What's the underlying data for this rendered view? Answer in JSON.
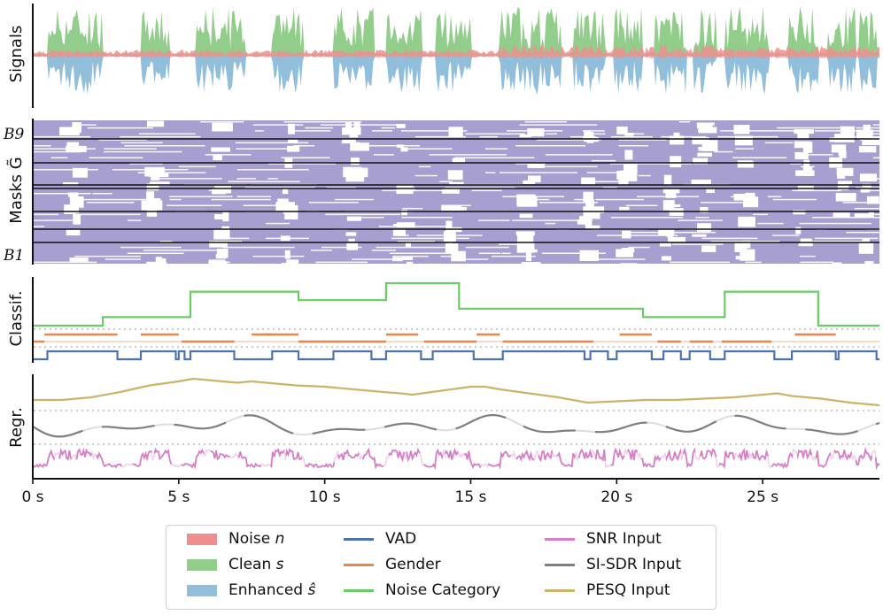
{
  "colors": {
    "noise": "#ee8e8e",
    "clean": "#93cd8c",
    "enhanced": "#91bfdb",
    "mask": "#a69fd0",
    "vad": "#4c72b0",
    "gender": "#e8864d",
    "noise_category": "#6acc64",
    "snr": "#d67fc6",
    "sisdr": "#7f7f7f",
    "pesq": "#cbb46a"
  },
  "chart_data": [
    {
      "type": "area",
      "ylabel": "Signals",
      "series": [
        {
          "name": "Noise n",
          "kind": "noise"
        },
        {
          "name": "Clean s",
          "kind": "clean"
        },
        {
          "name": "Enhanced ŝ",
          "kind": "enhanced"
        }
      ],
      "speech_segments_s": [
        [
          0.5,
          2.4
        ],
        [
          3.7,
          4.7
        ],
        [
          5.6,
          7.3
        ],
        [
          8.2,
          9.3
        ],
        [
          10.3,
          11.7
        ],
        [
          12.1,
          13.3
        ],
        [
          13.8,
          15.0
        ],
        [
          16.0,
          18.1
        ],
        [
          18.5,
          19.6
        ],
        [
          19.9,
          20.9
        ],
        [
          21.3,
          22.4
        ],
        [
          22.6,
          23.4
        ],
        [
          23.7,
          25.2
        ],
        [
          25.9,
          26.9
        ],
        [
          27.2,
          28.2
        ],
        [
          28.3,
          28.9
        ]
      ]
    },
    {
      "type": "heatmap",
      "ylabel": "Masks G̃",
      "band_top_label": "B9",
      "band_bottom_label": "B1",
      "speech_segments_s": [
        [
          0.5,
          2.4
        ],
        [
          3.7,
          4.7
        ],
        [
          5.6,
          7.3
        ],
        [
          8.2,
          9.3
        ],
        [
          10.3,
          11.7
        ],
        [
          12.1,
          13.3
        ],
        [
          13.8,
          15.0
        ],
        [
          16.0,
          18.1
        ],
        [
          18.5,
          19.6
        ],
        [
          19.9,
          20.9
        ],
        [
          21.3,
          22.4
        ],
        [
          22.6,
          23.4
        ],
        [
          23.7,
          25.2
        ],
        [
          25.9,
          26.9
        ],
        [
          27.2,
          28.2
        ],
        [
          28.3,
          28.9
        ]
      ]
    },
    {
      "type": "line",
      "ylabel": "Classif.",
      "noise_category_steps": [
        [
          0,
          0
        ],
        [
          2.4,
          1
        ],
        [
          5.4,
          4
        ],
        [
          9.1,
          3
        ],
        [
          12.1,
          5
        ],
        [
          14.6,
          2
        ],
        [
          20.9,
          1
        ],
        [
          23.7,
          4
        ],
        [
          26.9,
          0
        ],
        [
          29.0,
          0
        ]
      ],
      "vad_segments_s": [
        [
          0.5,
          2.9
        ],
        [
          3.7,
          4.9
        ],
        [
          5.0,
          5.2
        ],
        [
          5.4,
          6.9
        ],
        [
          8.2,
          9.1
        ],
        [
          10.3,
          11.6
        ],
        [
          12.1,
          13.3
        ],
        [
          13.7,
          15.1
        ],
        [
          16.1,
          18.9
        ],
        [
          19.1,
          19.7
        ],
        [
          20.0,
          21.2
        ],
        [
          21.6,
          22.2
        ],
        [
          22.5,
          23.2
        ],
        [
          23.7,
          25.4
        ],
        [
          26.0,
          27.5
        ],
        [
          27.6,
          28.9
        ]
      ],
      "gender_segments": [
        [
          0,
          0.4,
          "low"
        ],
        [
          0.4,
          2.9,
          "high"
        ],
        [
          3.7,
          5.0,
          "high"
        ],
        [
          5.1,
          6.9,
          "low"
        ],
        [
          7.5,
          8.2,
          "high"
        ],
        [
          7.9,
          9.1,
          "high"
        ],
        [
          9.1,
          12.1,
          "low"
        ],
        [
          12.1,
          13.2,
          "high"
        ],
        [
          13.4,
          15.2,
          "low"
        ],
        [
          15.2,
          16.0,
          "high"
        ],
        [
          16.1,
          19.2,
          "low"
        ],
        [
          20.1,
          21.2,
          "high"
        ],
        [
          21.4,
          22.2,
          "low"
        ],
        [
          22.5,
          23.3,
          "low"
        ],
        [
          23.6,
          25.3,
          "low"
        ],
        [
          26.1,
          27.5,
          "high"
        ]
      ]
    },
    {
      "type": "line",
      "ylabel": "Regr.",
      "series": [
        {
          "name": "SNR Input",
          "kind": "snr"
        },
        {
          "name": "SI-SDR Input",
          "kind": "sisdr"
        },
        {
          "name": "PESQ Input",
          "kind": "pesq"
        }
      ],
      "pesq_curve": [
        [
          0,
          0.2
        ],
        [
          1,
          0.2
        ],
        [
          2,
          0.3
        ],
        [
          3,
          0.5
        ],
        [
          4,
          0.75
        ],
        [
          5,
          0.9
        ],
        [
          5.5,
          1.0
        ],
        [
          6,
          0.95
        ],
        [
          7,
          0.85
        ],
        [
          7.5,
          0.9
        ],
        [
          8,
          0.85
        ],
        [
          9,
          0.75
        ],
        [
          10,
          0.7
        ],
        [
          11,
          0.6
        ],
        [
          12,
          0.5
        ],
        [
          12.6,
          0.45
        ],
        [
          13,
          0.4
        ],
        [
          14,
          0.55
        ],
        [
          15,
          0.7
        ],
        [
          15.5,
          0.7
        ],
        [
          16,
          0.6
        ],
        [
          17,
          0.45
        ],
        [
          18,
          0.3
        ],
        [
          19,
          0.1
        ],
        [
          20,
          0.15
        ],
        [
          21,
          0.2
        ],
        [
          22,
          0.2
        ],
        [
          23,
          0.25
        ],
        [
          24,
          0.3
        ],
        [
          25,
          0.4
        ],
        [
          25.5,
          0.45
        ],
        [
          26,
          0.35
        ],
        [
          27,
          0.25
        ],
        [
          28,
          0.1
        ],
        [
          29,
          0.0
        ]
      ],
      "xlabel_ticks": [
        "0 s",
        "5 s",
        "10 s",
        "15 s",
        "20 s",
        "25 s"
      ],
      "xticks_s": [
        0,
        5,
        10,
        15,
        20,
        25
      ],
      "xlim_s": [
        0,
        29
      ]
    }
  ],
  "legend": {
    "col1": [
      "Noise ",
      "Clean ",
      "Enhanced "
    ],
    "col1_math": [
      "n",
      "s",
      "ŝ"
    ],
    "col2": [
      "VAD",
      "Gender",
      "Noise Category"
    ],
    "col3": [
      "SNR Input",
      "SI-SDR Input",
      "PESQ Input"
    ]
  }
}
